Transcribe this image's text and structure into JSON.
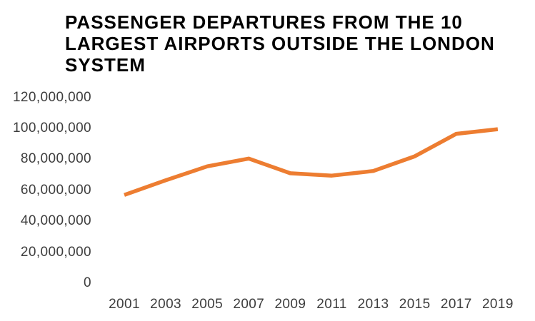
{
  "title": {
    "text": "PASSENGER DEPARTURES FROM THE 10 LARGEST AIRPORTS OUTSIDE THE LONDON SYSTEM",
    "lines": [
      "PASSENGER DEPARTURES FROM THE 10",
      "LARGEST AIRPORTS OUTSIDE THE LONDON",
      "SYSTEM"
    ]
  },
  "colors": {
    "line": "#ED7D31",
    "title_text": "#000000",
    "axis_text": "#3D3D3D",
    "background": "#FFFFFF"
  },
  "chart_data": {
    "type": "line",
    "title": "PASSENGER DEPARTURES FROM THE 10 LARGEST AIRPORTS OUTSIDE THE LONDON SYSTEM",
    "x": [
      2001,
      2003,
      2005,
      2007,
      2009,
      2011,
      2013,
      2015,
      2017,
      2019
    ],
    "series": [
      {
        "name": "Passenger departures",
        "color": "#ED7D31",
        "values": [
          57000000,
          66500000,
          75500000,
          80500000,
          71000000,
          69500000,
          72500000,
          82000000,
          96500000,
          99500000
        ]
      }
    ],
    "xlabel": "",
    "ylabel": "",
    "xlim": [
      2001,
      2019
    ],
    "ylim": [
      0,
      120000000
    ],
    "grid": false,
    "legend": "none",
    "y_axis": {
      "ticks": [
        {
          "value": 120000000,
          "label": "120,000,000"
        },
        {
          "value": 100000000,
          "label": "100,000,000"
        },
        {
          "value": 80000000,
          "label": "80,000,000"
        },
        {
          "value": 60000000,
          "label": "60,000,000"
        },
        {
          "value": 40000000,
          "label": "40,000,000"
        },
        {
          "value": 20000000,
          "label": "20,000,000"
        },
        {
          "value": 0,
          "label": "0"
        }
      ]
    },
    "x_axis": {
      "tick_labels": [
        "2001",
        "2003",
        "2005",
        "2007",
        "2009",
        "2011",
        "2013",
        "2015",
        "2017",
        "2019"
      ]
    }
  }
}
